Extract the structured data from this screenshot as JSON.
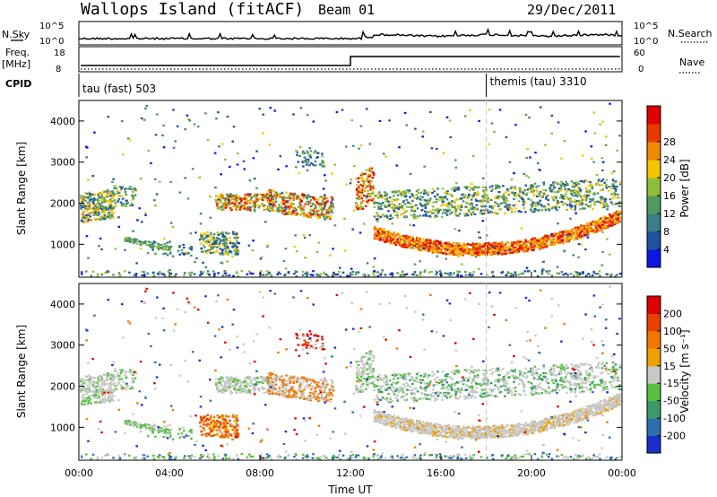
{
  "header": {
    "station": "Wallops Island (fitACF)",
    "beam": "Beam 01",
    "date": "29/Dec/2011"
  },
  "strips": {
    "nsky_label": "N.Sky",
    "nsky_ticks": [
      "10^5",
      "10^0"
    ],
    "nsearch_label": "N.Search",
    "nsearch_ticks": [
      "10^5",
      "10^0"
    ],
    "freq_label_1": "Freq.",
    "freq_label_2": "[MHz]",
    "freq_ticks": [
      "18",
      "8"
    ],
    "nave_label": "Nave",
    "nave_ticks": [
      "60",
      "0"
    ],
    "cpid_label": "CPID",
    "cpid_segments": [
      {
        "name": "tau (fast) 503",
        "start_hour": 0
      },
      {
        "name": "themis (tau) 3310",
        "start_hour": 18
      }
    ],
    "freq_step_hour": 12
  },
  "chart_data": [
    {
      "type": "heatmap",
      "name": "power",
      "ylabel": "Slant Range [km]",
      "y_ticks": [
        "1000",
        "2000",
        "3000",
        "4000"
      ],
      "ylim": [
        200,
        4500
      ],
      "colorbar_label": "Power [dB]",
      "colorbar_ticks": [
        "4",
        "8",
        "12",
        "16",
        "20",
        "24",
        "28"
      ],
      "colorbar_range": [
        0,
        32
      ],
      "colors": [
        "#0a18e0",
        "#1f4fa0",
        "#3b7f88",
        "#4f9a5e",
        "#8fbf3a",
        "#f5c400",
        "#f08a00",
        "#e83a00",
        "#e00000"
      ]
    },
    {
      "type": "heatmap",
      "name": "velocity",
      "ylabel": "Slant Range [km]",
      "y_ticks": [
        "1000",
        "2000",
        "3000",
        "4000"
      ],
      "ylim": [
        200,
        4500
      ],
      "colorbar_label": "Velocity [m s⁻¹]",
      "colorbar_ticks": [
        "200",
        "100",
        "50",
        "15",
        "-15",
        "-50",
        "-100",
        "-200"
      ],
      "colors": [
        "#1a2fc8",
        "#2c6fb0",
        "#3a9a6a",
        "#58c040",
        "#c8c8c8",
        "#f0a000",
        "#f07800",
        "#e84000",
        "#e00000"
      ]
    }
  ],
  "x_axis": {
    "xlabel": "Time UT",
    "ticks": [
      "00:00",
      "04:00",
      "08:00",
      "12:00",
      "16:00",
      "20:00",
      "00:00"
    ],
    "range_hours": [
      0,
      24
    ]
  }
}
